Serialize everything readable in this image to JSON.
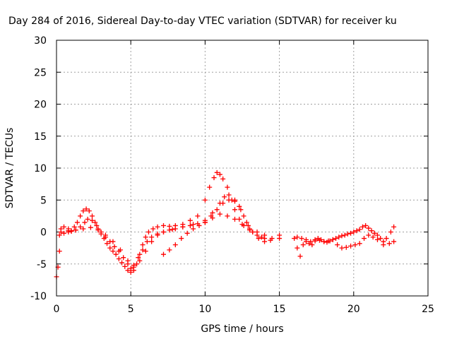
{
  "chart_data": {
    "type": "scatter",
    "title": "Day 284 of 2016, Sidereal Day-to-day VTEC variation (SDTVAR) for receiver ku",
    "xlabel": "GPS time / hours",
    "ylabel": "SDTVAR / TECUs",
    "xlim": [
      0,
      25
    ],
    "ylim": [
      -10,
      30
    ],
    "xticks": [
      "0",
      "5",
      "10",
      "15",
      "20",
      "25"
    ],
    "yticks": [
      "-10",
      "-5",
      "0",
      "5",
      "10",
      "15",
      "20",
      "25",
      "30"
    ],
    "grid": true,
    "marker": "plus",
    "colors": {
      "series": "#ff0000"
    },
    "series": [
      {
        "name": "",
        "x": [
          0.0,
          0.1,
          0.2,
          0.3,
          0.5,
          0.8,
          1.0,
          1.2,
          1.4,
          1.6,
          1.8,
          2.0,
          2.2,
          2.4,
          2.6,
          2.8,
          3.0,
          3.2,
          3.4,
          3.6,
          3.8,
          4.0,
          4.2,
          4.4,
          4.6,
          4.8,
          5.0,
          5.2,
          5.4,
          5.6,
          5.8,
          6.0,
          6.2,
          6.5,
          6.8,
          7.2,
          7.6,
          8.0,
          8.5,
          9.0,
          9.5,
          10.0,
          10.3,
          10.6,
          10.8,
          11.0,
          11.2,
          11.5,
          11.8,
          12.0,
          12.3,
          12.6,
          13.0,
          13.5,
          14.0,
          14.5,
          15.0
        ],
        "y": [
          -7.0,
          -5.5,
          -3.0,
          0.5,
          0.8,
          0.5,
          0.2,
          0.8,
          1.5,
          2.5,
          3.3,
          3.6,
          3.3,
          2.5,
          1.5,
          0.5,
          -0.3,
          -1.0,
          -1.8,
          -2.5,
          -3.0,
          -3.5,
          -4.2,
          -4.8,
          -5.4,
          -6.0,
          -6.3,
          -6.0,
          -5.0,
          -3.5,
          -2.0,
          -0.8,
          0.0,
          0.5,
          0.8,
          1.0,
          0.9,
          1.0,
          1.2,
          1.8,
          2.5,
          5.0,
          7.0,
          8.5,
          9.3,
          9.0,
          8.3,
          7.0,
          5.0,
          3.5,
          2.0,
          1.0,
          0.5,
          0.0,
          -0.5,
          -1.0,
          -0.5
        ]
      },
      {
        "name": "",
        "x": [
          0.2,
          0.5,
          0.8,
          1.0,
          1.3,
          1.6,
          1.9,
          2.1,
          2.4,
          2.7,
          3.0,
          3.3,
          3.6,
          3.9,
          4.2,
          4.5,
          4.8,
          5.0,
          5.2,
          5.5,
          5.8,
          6.1,
          6.4,
          6.8,
          7.2,
          7.6,
          8.0,
          8.5,
          9.0,
          9.5,
          10.0,
          10.5,
          11.0,
          11.3,
          11.6,
          12.0,
          12.3,
          12.6,
          12.9,
          13.2,
          13.6,
          14.0
        ],
        "y": [
          -0.5,
          -0.2,
          0.0,
          0.1,
          0.3,
          0.8,
          1.5,
          2.0,
          1.8,
          1.0,
          0.0,
          -0.8,
          -1.5,
          -2.3,
          -3.0,
          -4.0,
          -5.0,
          -5.7,
          -5.2,
          -4.0,
          -2.8,
          -1.5,
          -0.8,
          -0.3,
          0.0,
          0.3,
          0.5,
          0.8,
          1.0,
          1.3,
          1.8,
          3.0,
          4.5,
          5.5,
          5.8,
          5.0,
          4.0,
          2.5,
          1.0,
          0.0,
          -1.0,
          -1.5
        ]
      },
      {
        "name": "",
        "x": [
          0.3,
          0.8,
          1.3,
          1.8,
          2.3,
          2.8,
          3.3,
          3.8,
          4.3,
          4.8,
          5.2,
          5.6,
          6.0,
          6.4,
          6.8,
          7.2,
          7.8,
          8.5,
          9.2,
          10.0,
          10.5,
          11.0,
          11.5,
          12.0,
          12.5,
          13.0,
          13.5,
          14.0
        ],
        "y": [
          0.0,
          0.2,
          0.3,
          0.5,
          0.7,
          0.3,
          -0.5,
          -1.5,
          -2.8,
          -4.5,
          -5.5,
          -4.5,
          -3.0,
          -1.5,
          -0.5,
          0.0,
          0.4,
          0.8,
          1.2,
          1.5,
          2.2,
          2.8,
          2.5,
          2.0,
          1.2,
          0.3,
          -0.5,
          -1.0
        ]
      },
      {
        "name": "",
        "x": [
          7.2,
          7.6,
          8.0,
          8.4,
          8.8,
          9.2,
          9.6,
          10.0,
          10.4,
          10.8,
          11.2,
          11.6,
          12.0,
          12.4,
          12.8,
          13.2,
          13.8,
          14.4,
          15.0
        ],
        "y": [
          -3.5,
          -2.8,
          -2.0,
          -1.0,
          -0.2,
          0.5,
          1.0,
          1.5,
          2.5,
          3.5,
          4.5,
          5.0,
          4.8,
          3.5,
          1.5,
          0.0,
          -0.8,
          -1.3,
          -1.0
        ]
      },
      {
        "name": "",
        "x": [
          16.0,
          16.2,
          16.4,
          16.6,
          16.8,
          17.0,
          17.2,
          17.4,
          17.6,
          17.8,
          18.0,
          18.2,
          18.4,
          18.6,
          18.8,
          19.0,
          19.2,
          19.4,
          19.6,
          19.8,
          20.0,
          20.2,
          20.4,
          20.6,
          20.8,
          21.0,
          21.2,
          21.4,
          21.6,
          21.8,
          22.0,
          22.2,
          22.5,
          22.7
        ],
        "y": [
          -1.0,
          -2.5,
          -3.8,
          -2.0,
          -1.5,
          -1.8,
          -2.0,
          -1.2,
          -1.0,
          -1.2,
          -1.5,
          -1.6,
          -1.4,
          -1.2,
          -1.0,
          -0.8,
          -0.6,
          -0.5,
          -0.3,
          -0.2,
          0.0,
          0.2,
          0.4,
          0.8,
          1.0,
          0.6,
          0.2,
          -0.2,
          -0.5,
          -1.0,
          -2.0,
          -1.0,
          0.0,
          0.8
        ]
      },
      {
        "name": "",
        "x": [
          16.2,
          16.5,
          16.8,
          17.1,
          17.4,
          17.7,
          18.0,
          18.3,
          18.6,
          18.9,
          19.2,
          19.5,
          19.8,
          20.1,
          20.4,
          20.7,
          21.0,
          21.3,
          21.6,
          22.0,
          22.4,
          22.7
        ],
        "y": [
          -0.8,
          -1.0,
          -1.2,
          -1.5,
          -1.4,
          -1.3,
          -1.5,
          -1.4,
          -1.2,
          -2.0,
          -2.5,
          -2.4,
          -2.2,
          -2.0,
          -1.8,
          -1.0,
          -0.5,
          -0.8,
          -1.2,
          -1.5,
          -1.8,
          -1.5
        ]
      }
    ]
  }
}
